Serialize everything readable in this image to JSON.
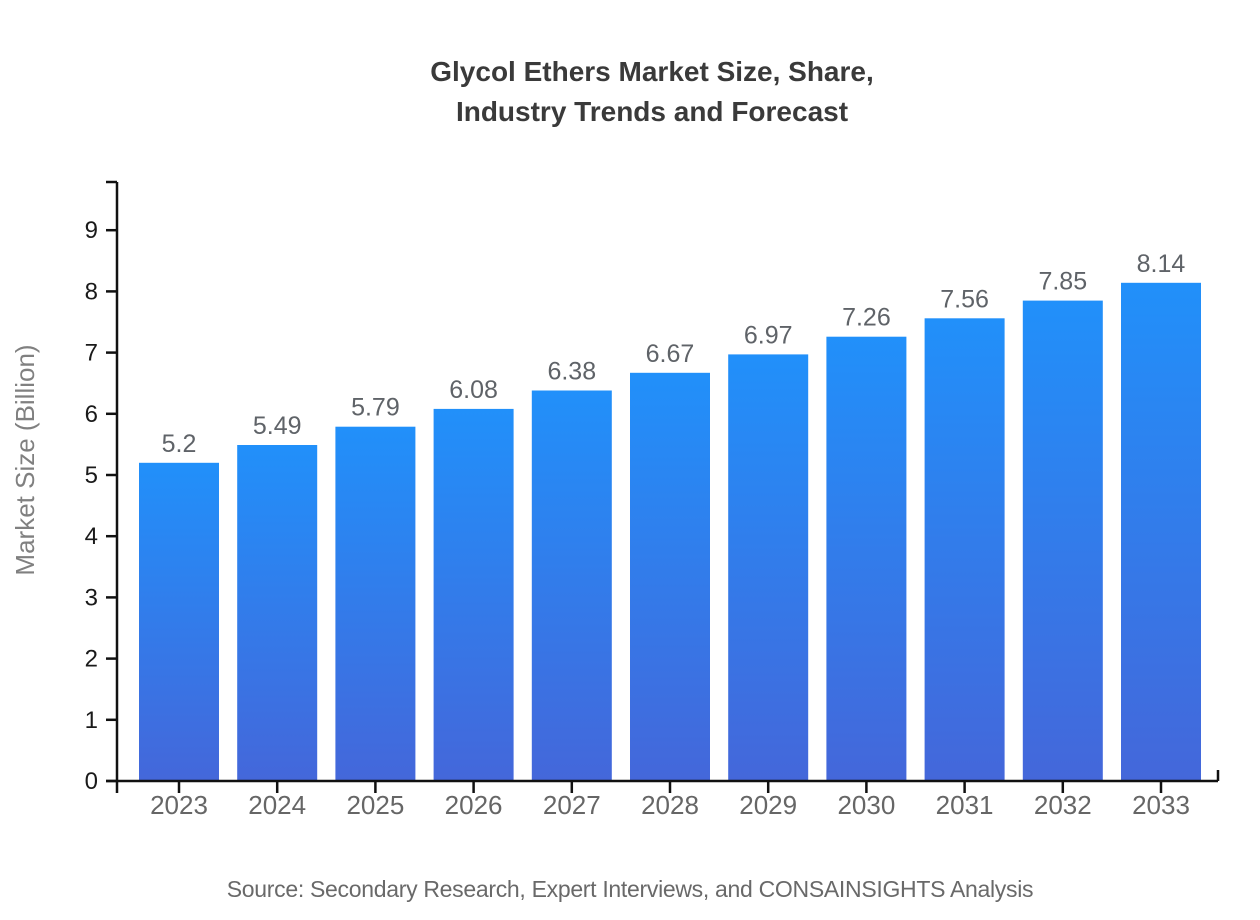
{
  "title": {
    "lines": [
      "Glycol Ethers Market Size, Share,",
      "Industry Trends and Forecast"
    ]
  },
  "source": {
    "text": "Source: Secondary Research, Expert Interviews, and CONSAINSIGHTS Analysis"
  },
  "chart_data": {
    "type": "bar",
    "title": "Glycol Ethers Market Size, Share, Industry Trends and Forecast",
    "categories": [
      "2023",
      "2024",
      "2025",
      "2026",
      "2027",
      "2028",
      "2029",
      "2030",
      "2031",
      "2032",
      "2033"
    ],
    "values": [
      5.2,
      5.49,
      5.79,
      6.08,
      6.38,
      6.67,
      6.97,
      7.26,
      7.56,
      7.85,
      8.14
    ],
    "xlabel": "",
    "ylabel": "Market Size (Billion)",
    "ylim": [
      0,
      9.79
    ],
    "yticks": [
      0,
      1,
      2,
      3,
      4,
      5,
      6,
      7,
      8,
      9
    ],
    "grid": false,
    "legend": "none",
    "colors": {
      "bar_gradient_top": "#2190fa",
      "bar_gradient_bottom": "#4467da",
      "axis": "#111111",
      "ytick_label": "#1a1a1a",
      "category_label": "#666666",
      "value_label": "#5f6368",
      "ylabel": "#808080",
      "title": "#3a3a3a",
      "source": "#696969"
    }
  }
}
